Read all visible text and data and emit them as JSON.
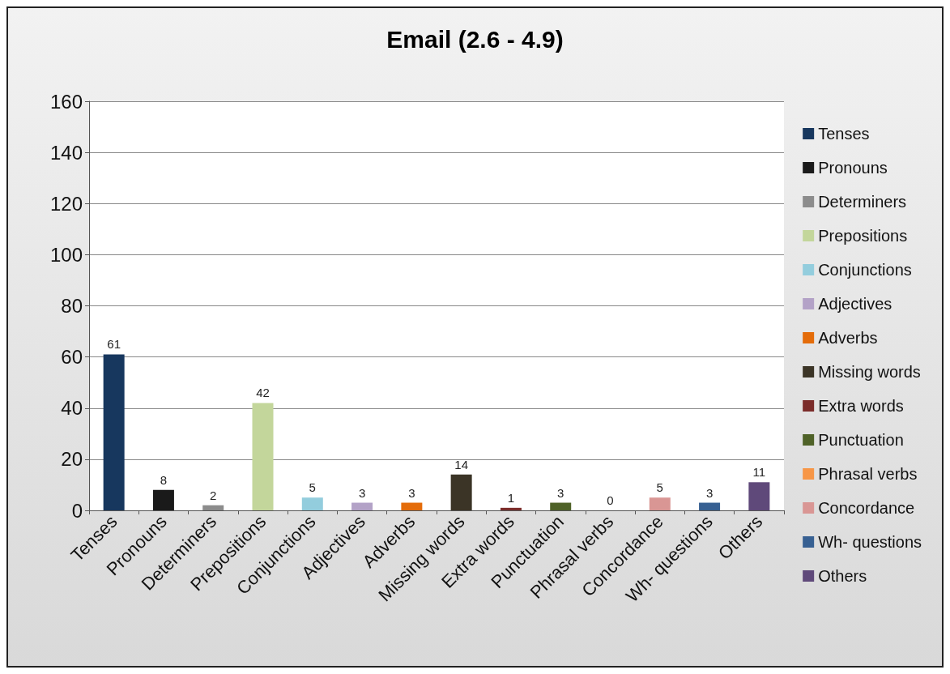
{
  "chart_data": {
    "type": "bar",
    "title": "Email (2.6 - 4.9)",
    "categories": [
      "Tenses",
      "Pronouns",
      "Determiners",
      "Prepositions",
      "Conjunctions",
      "Adjectives",
      "Adverbs",
      "Missing words",
      "Extra words",
      "Punctuation",
      "Phrasal verbs",
      "Concordance",
      "Wh- questions",
      "Others"
    ],
    "series": [
      {
        "name": "Tenses",
        "color": "#17375e",
        "values": [
          61,
          null,
          null,
          null,
          null,
          null,
          null,
          null,
          null,
          null,
          null,
          null,
          null,
          null
        ]
      },
      {
        "name": "Pronouns",
        "color": "#1a1a1a",
        "values": [
          null,
          8,
          null,
          null,
          null,
          null,
          null,
          null,
          null,
          null,
          null,
          null,
          null,
          null
        ]
      },
      {
        "name": "Determiners",
        "color": "#8c8c8c",
        "values": [
          null,
          null,
          2,
          null,
          null,
          null,
          null,
          null,
          null,
          null,
          null,
          null,
          null,
          null
        ]
      },
      {
        "name": "Prepositions",
        "color": "#c3d69b",
        "values": [
          null,
          null,
          null,
          42,
          null,
          null,
          null,
          null,
          null,
          null,
          null,
          null,
          null,
          null
        ]
      },
      {
        "name": "Conjunctions",
        "color": "#93cddd",
        "values": [
          null,
          null,
          null,
          null,
          5,
          null,
          null,
          null,
          null,
          null,
          null,
          null,
          null,
          null
        ]
      },
      {
        "name": "Adjectives",
        "color": "#b3a2c7",
        "values": [
          null,
          null,
          null,
          null,
          null,
          3,
          null,
          null,
          null,
          null,
          null,
          null,
          null,
          null
        ]
      },
      {
        "name": "Adverbs",
        "color": "#e46c0a",
        "values": [
          null,
          null,
          null,
          null,
          null,
          null,
          3,
          null,
          null,
          null,
          null,
          null,
          null,
          null
        ]
      },
      {
        "name": "Missing words",
        "color": "#3b3426",
        "values": [
          null,
          null,
          null,
          null,
          null,
          null,
          null,
          14,
          null,
          null,
          null,
          null,
          null,
          null
        ]
      },
      {
        "name": "Extra words",
        "color": "#7b2c2a",
        "values": [
          null,
          null,
          null,
          null,
          null,
          null,
          null,
          null,
          1,
          null,
          null,
          null,
          null,
          null
        ]
      },
      {
        "name": "Punctuation",
        "color": "#4f6228",
        "values": [
          null,
          null,
          null,
          null,
          null,
          null,
          null,
          null,
          null,
          3,
          null,
          null,
          null,
          null
        ]
      },
      {
        "name": "Phrasal verbs",
        "color": "#f79646",
        "values": [
          null,
          null,
          null,
          null,
          null,
          null,
          null,
          null,
          null,
          null,
          0,
          null,
          null,
          null
        ]
      },
      {
        "name": "Concordance",
        "color": "#d99694",
        "values": [
          null,
          null,
          null,
          null,
          null,
          null,
          null,
          null,
          null,
          null,
          null,
          5,
          null,
          null
        ]
      },
      {
        "name": "Wh- questions",
        "color": "#376092",
        "values": [
          null,
          null,
          null,
          null,
          null,
          null,
          null,
          null,
          null,
          null,
          null,
          null,
          3,
          null
        ]
      },
      {
        "name": "Others",
        "color": "#5f497a",
        "values": [
          null,
          null,
          null,
          null,
          null,
          null,
          null,
          null,
          null,
          null,
          null,
          null,
          null,
          11
        ]
      }
    ],
    "ylim": [
      0,
      160
    ],
    "yticks": [
      0,
      20,
      40,
      60,
      80,
      100,
      120,
      140,
      160
    ],
    "grid": "y",
    "legend": "right",
    "data_labels": true
  }
}
